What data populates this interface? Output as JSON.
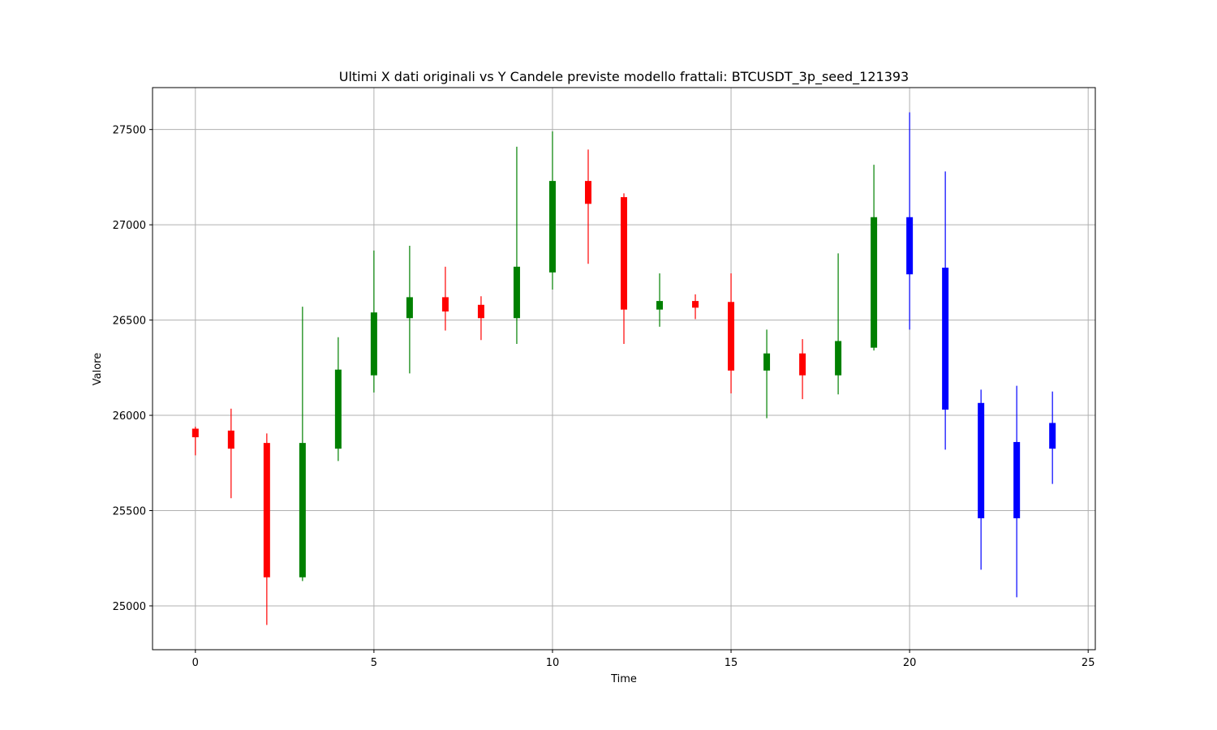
{
  "chart_data": {
    "type": "candlestick",
    "title": "Ultimi X dati originali vs Y Candele previste modello frattali: BTCUSDT_3p_seed_121393",
    "xlabel": "Time",
    "ylabel": "Valore",
    "xlim": [
      -1.2,
      25.2
    ],
    "ylim": [
      24770,
      27720
    ],
    "xticks": [
      0,
      5,
      10,
      15,
      20,
      25
    ],
    "yticks": [
      25000,
      25500,
      26000,
      26500,
      27000,
      27500
    ],
    "grid": true,
    "colors": {
      "up": "#008000",
      "down": "#ff0000",
      "forecast": "#0000ff",
      "grid": "#b0b0b0"
    },
    "candles": [
      {
        "t": 0,
        "open": 25930,
        "high": 25940,
        "low": 25790,
        "close": 25885,
        "kind": "down"
      },
      {
        "t": 1,
        "open": 25920,
        "high": 26035,
        "low": 25565,
        "close": 25825,
        "kind": "down"
      },
      {
        "t": 2,
        "open": 25855,
        "high": 25905,
        "low": 24900,
        "close": 25150,
        "kind": "down"
      },
      {
        "t": 3,
        "open": 25150,
        "high": 26570,
        "low": 25130,
        "close": 25855,
        "kind": "up"
      },
      {
        "t": 4,
        "open": 25825,
        "high": 26410,
        "low": 25760,
        "close": 26240,
        "kind": "up"
      },
      {
        "t": 5,
        "open": 26210,
        "high": 26865,
        "low": 26120,
        "close": 26540,
        "kind": "up"
      },
      {
        "t": 6,
        "open": 26510,
        "high": 26890,
        "low": 26220,
        "close": 26620,
        "kind": "up"
      },
      {
        "t": 7,
        "open": 26620,
        "high": 26780,
        "low": 26445,
        "close": 26545,
        "kind": "down"
      },
      {
        "t": 8,
        "open": 26580,
        "high": 26625,
        "low": 26395,
        "close": 26510,
        "kind": "down"
      },
      {
        "t": 9,
        "open": 26510,
        "high": 27410,
        "low": 26375,
        "close": 26780,
        "kind": "up"
      },
      {
        "t": 10,
        "open": 26750,
        "high": 27490,
        "low": 26660,
        "close": 27230,
        "kind": "up"
      },
      {
        "t": 11,
        "open": 27230,
        "high": 27395,
        "low": 26795,
        "close": 27110,
        "kind": "down"
      },
      {
        "t": 12,
        "open": 27145,
        "high": 27165,
        "low": 26375,
        "close": 26555,
        "kind": "down"
      },
      {
        "t": 13,
        "open": 26555,
        "high": 26745,
        "low": 26465,
        "close": 26600,
        "kind": "up"
      },
      {
        "t": 14,
        "open": 26600,
        "high": 26635,
        "low": 26505,
        "close": 26565,
        "kind": "down"
      },
      {
        "t": 15,
        "open": 26595,
        "high": 26745,
        "low": 26115,
        "close": 26235,
        "kind": "down"
      },
      {
        "t": 16,
        "open": 26235,
        "high": 26450,
        "low": 25985,
        "close": 26325,
        "kind": "up"
      },
      {
        "t": 17,
        "open": 26325,
        "high": 26400,
        "low": 26085,
        "close": 26210,
        "kind": "down"
      },
      {
        "t": 18,
        "open": 26210,
        "high": 26850,
        "low": 26110,
        "close": 26390,
        "kind": "up"
      },
      {
        "t": 19,
        "open": 26355,
        "high": 27315,
        "low": 26340,
        "close": 27040,
        "kind": "up"
      },
      {
        "t": 20,
        "open": 27040,
        "high": 27590,
        "low": 26450,
        "close": 26740,
        "kind": "forecast"
      },
      {
        "t": 21,
        "open": 26775,
        "high": 27280,
        "low": 25820,
        "close": 26030,
        "kind": "forecast"
      },
      {
        "t": 22,
        "open": 26065,
        "high": 26135,
        "low": 25190,
        "close": 25460,
        "kind": "forecast"
      },
      {
        "t": 23,
        "open": 25860,
        "high": 26155,
        "low": 25045,
        "close": 25460,
        "kind": "forecast"
      },
      {
        "t": 24,
        "open": 25960,
        "high": 26125,
        "low": 25640,
        "close": 25825,
        "kind": "forecast"
      }
    ]
  }
}
